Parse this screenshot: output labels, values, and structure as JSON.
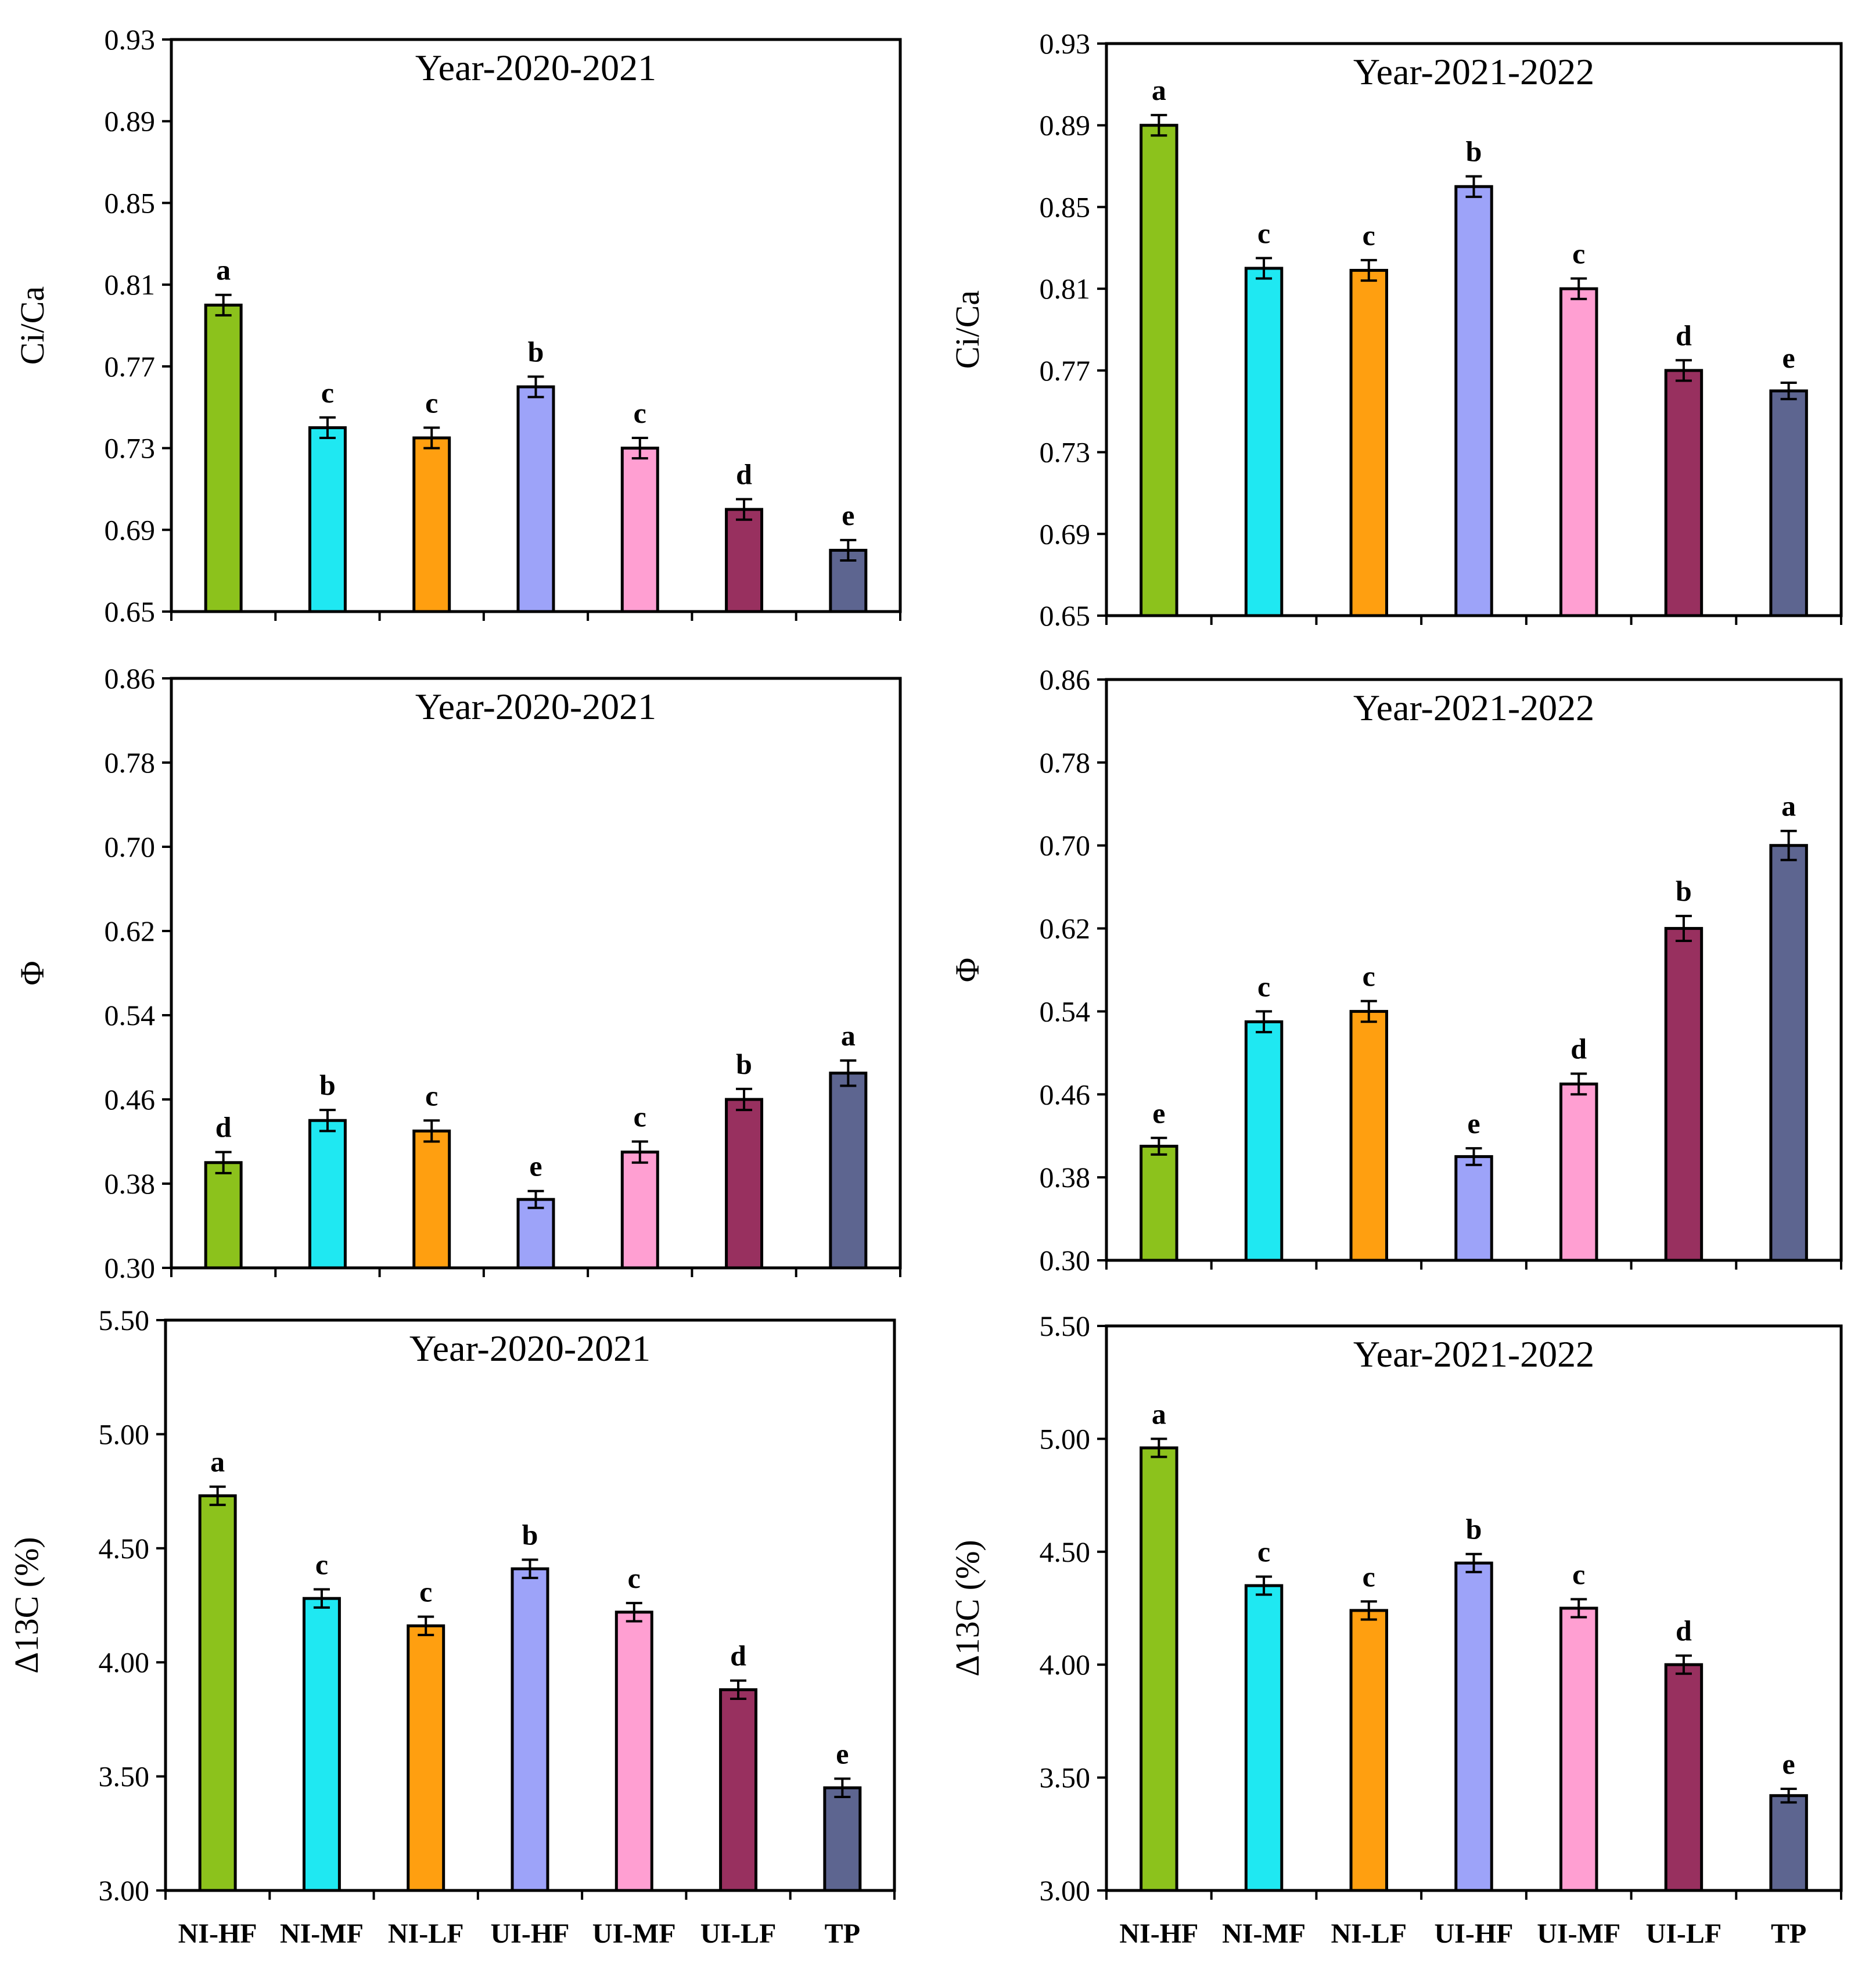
{
  "chart_data": [
    {
      "type": "bar",
      "title": "Year-2020-2021",
      "ylabel": "Ci/Ca",
      "ylim": [
        0.65,
        0.93
      ],
      "yticks": [
        "0.65",
        "0.69",
        "0.73",
        "0.77",
        "0.81",
        "0.85",
        "0.89",
        "0.93"
      ],
      "categories": [
        "NI-HF",
        "NI-MF",
        "NI-LF",
        "UI-HF",
        "UI-MF",
        "UI-LF",
        "TP"
      ],
      "values": [
        0.8,
        0.74,
        0.735,
        0.76,
        0.73,
        0.7,
        0.68
      ],
      "errors": [
        0.005,
        0.005,
        0.005,
        0.005,
        0.005,
        0.005,
        0.005
      ],
      "letters": [
        "a",
        "c",
        "c",
        "b",
        "c",
        "d",
        "e"
      ],
      "show_xlabels": false
    },
    {
      "type": "bar",
      "title": "Year-2021-2022",
      "ylabel": "Ci/Ca",
      "ylim": [
        0.65,
        0.93
      ],
      "yticks": [
        "0.65",
        "0.69",
        "0.73",
        "0.77",
        "0.81",
        "0.85",
        "0.89",
        "0.93"
      ],
      "categories": [
        "NI-HF",
        "NI-MF",
        "NI-LF",
        "UI-HF",
        "UI-MF",
        "UI-LF",
        "TP"
      ],
      "values": [
        0.89,
        0.82,
        0.819,
        0.86,
        0.81,
        0.77,
        0.76
      ],
      "errors": [
        0.005,
        0.005,
        0.005,
        0.005,
        0.005,
        0.005,
        0.004
      ],
      "letters": [
        "a",
        "c",
        "c",
        "b",
        "c",
        "d",
        "e"
      ],
      "show_xlabels": false
    },
    {
      "type": "bar",
      "title": "Year-2020-2021",
      "ylabel": "Φ",
      "ylim": [
        0.3,
        0.86
      ],
      "yticks": [
        "0.30",
        "0.38",
        "0.46",
        "0.54",
        "0.62",
        "0.70",
        "0.78",
        "0.86"
      ],
      "categories": [
        "NI-HF",
        "NI-MF",
        "NI-LF",
        "UI-HF",
        "UI-MF",
        "UI-LF",
        "TP"
      ],
      "values": [
        0.4,
        0.44,
        0.43,
        0.365,
        0.41,
        0.46,
        0.485
      ],
      "errors": [
        0.01,
        0.01,
        0.01,
        0.008,
        0.01,
        0.01,
        0.012
      ],
      "letters": [
        "d",
        "b",
        "c",
        "e",
        "c",
        "b",
        "a"
      ],
      "show_xlabels": false
    },
    {
      "type": "bar",
      "title": "Year-2021-2022",
      "ylabel": "Φ",
      "ylim": [
        0.3,
        0.86
      ],
      "yticks": [
        "0.30",
        "0.38",
        "0.46",
        "0.54",
        "0.62",
        "0.70",
        "0.78",
        "0.86"
      ],
      "categories": [
        "NI-HF",
        "NI-MF",
        "NI-LF",
        "UI-HF",
        "UI-MF",
        "UI-LF",
        "TP"
      ],
      "values": [
        0.41,
        0.53,
        0.54,
        0.4,
        0.47,
        0.62,
        0.7
      ],
      "errors": [
        0.008,
        0.01,
        0.01,
        0.008,
        0.01,
        0.012,
        0.014
      ],
      "letters": [
        "e",
        "c",
        "c",
        "e",
        "d",
        "b",
        "a"
      ],
      "show_xlabels": false
    },
    {
      "type": "bar",
      "title": "Year-2020-2021",
      "ylabel": "Δ13C (%)",
      "ylim": [
        3.0,
        5.5
      ],
      "yticks": [
        "3.00",
        "3.50",
        "4.00",
        "4.50",
        "5.00",
        "5.50"
      ],
      "categories": [
        "NI-HF",
        "NI-MF",
        "NI-LF",
        "UI-HF",
        "UI-MF",
        "UI-LF",
        "TP"
      ],
      "values": [
        4.73,
        4.28,
        4.16,
        4.41,
        4.22,
        3.88,
        3.45
      ],
      "errors": [
        0.04,
        0.04,
        0.04,
        0.04,
        0.04,
        0.04,
        0.04
      ],
      "letters": [
        "a",
        "c",
        "c",
        "b",
        "c",
        "d",
        "e"
      ],
      "show_xlabels": true
    },
    {
      "type": "bar",
      "title": "Year-2021-2022",
      "ylabel": "Δ13C (%)",
      "ylim": [
        3.0,
        5.5
      ],
      "yticks": [
        "3.00",
        "3.50",
        "4.00",
        "4.50",
        "5.00",
        "5.50"
      ],
      "categories": [
        "NI-HF",
        "NI-MF",
        "NI-LF",
        "UI-HF",
        "UI-MF",
        "UI-LF",
        "TP"
      ],
      "values": [
        4.96,
        4.35,
        4.24,
        4.45,
        4.25,
        4.0,
        3.42
      ],
      "errors": [
        0.04,
        0.04,
        0.04,
        0.04,
        0.04,
        0.04,
        0.03
      ],
      "letters": [
        "a",
        "c",
        "c",
        "b",
        "c",
        "d",
        "e"
      ],
      "show_xlabels": true
    }
  ],
  "colors": [
    "#8cc21c",
    "#1fe8f2",
    "#ff9f10",
    "#9da3f9",
    "#ff9fd2",
    "#98305f",
    "#5d6590"
  ]
}
